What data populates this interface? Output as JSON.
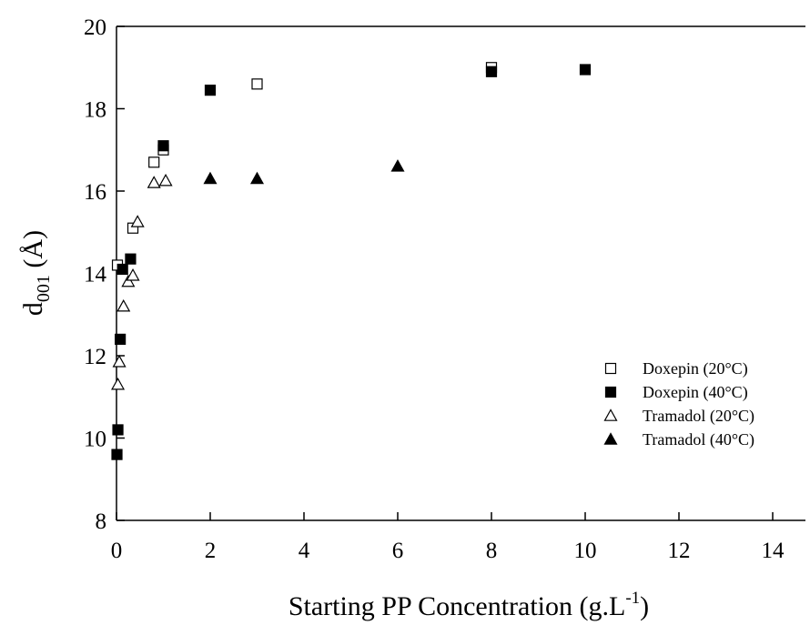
{
  "chart_data": {
    "type": "scatter",
    "title": "",
    "xlabel": "Starting PP Concentration (g.L",
    "xlabel_superscript": "-1",
    "xlabel_suffix": ")",
    "ylabel_main": "d",
    "ylabel_subscript": "001",
    "ylabel_suffix": " (Å)",
    "xlim": [
      0,
      15
    ],
    "ylim": [
      8,
      20
    ],
    "xticks": [
      0,
      2,
      4,
      6,
      8,
      10,
      12,
      14
    ],
    "yticks": [
      8,
      10,
      12,
      14,
      16,
      18,
      20
    ],
    "grid": false,
    "legend_position": "right",
    "series": [
      {
        "name": "Doxepin (20°C)",
        "marker": "square-open",
        "color": "#000000",
        "points": [
          [
            0.02,
            14.2
          ],
          [
            0.8,
            16.7
          ],
          [
            1.0,
            17.0
          ],
          [
            3.0,
            18.6
          ],
          [
            8.0,
            19.0
          ],
          [
            0.35,
            15.1
          ]
        ]
      },
      {
        "name": "Doxepin (40°C)",
        "marker": "square-filled",
        "color": "#000000",
        "points": [
          [
            0.01,
            9.6
          ],
          [
            0.03,
            10.2
          ],
          [
            0.08,
            12.4
          ],
          [
            0.13,
            14.1
          ],
          [
            0.3,
            14.35
          ],
          [
            1.0,
            17.1
          ],
          [
            2.0,
            18.45
          ],
          [
            8.0,
            18.9
          ],
          [
            10.0,
            18.95
          ]
        ]
      },
      {
        "name": "Tramadol (20°C)",
        "marker": "triangle-open",
        "color": "#000000",
        "points": [
          [
            0.03,
            11.3
          ],
          [
            0.06,
            11.85
          ],
          [
            0.15,
            13.2
          ],
          [
            0.25,
            13.8
          ],
          [
            0.35,
            13.95
          ],
          [
            0.45,
            15.25
          ],
          [
            0.8,
            16.2
          ],
          [
            1.05,
            16.25
          ]
        ]
      },
      {
        "name": "Tramadol (40°C)",
        "marker": "triangle-filled",
        "color": "#000000",
        "points": [
          [
            2.0,
            16.3
          ],
          [
            3.0,
            16.3
          ],
          [
            6.0,
            16.6
          ]
        ]
      }
    ]
  }
}
